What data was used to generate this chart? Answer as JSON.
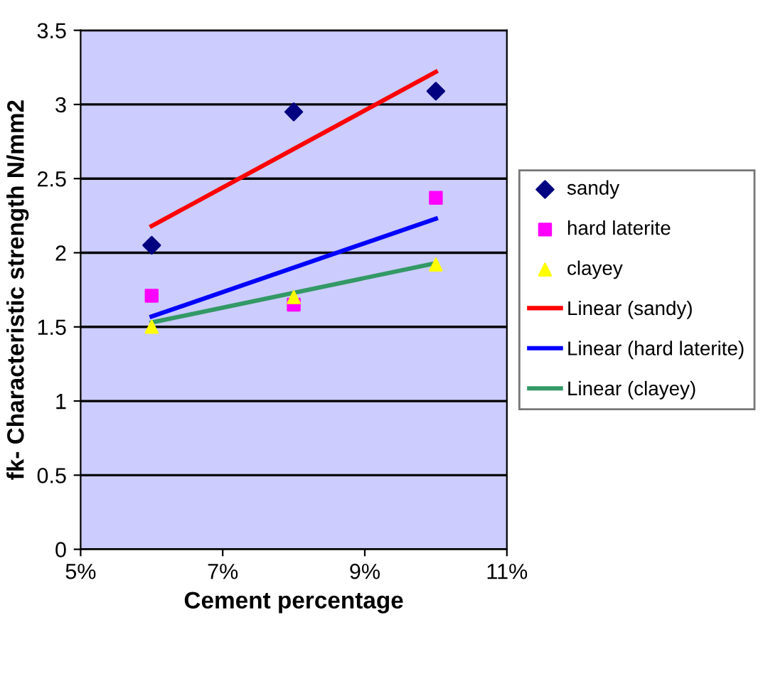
{
  "chart_data": {
    "type": "scatter",
    "xlabel": "Cement percentage",
    "ylabel": "fk- Characteristic strength N/mm2",
    "xlim": [
      5,
      11
    ],
    "xticks": [
      {
        "value": 5,
        "label": "5%"
      },
      {
        "value": 7,
        "label": "7%"
      },
      {
        "value": 9,
        "label": "9%"
      },
      {
        "value": 11,
        "label": "11%"
      }
    ],
    "ylim": [
      0,
      3.5
    ],
    "yticks": [
      0,
      0.5,
      1,
      1.5,
      2,
      2.5,
      3,
      3.5
    ],
    "grid": "y",
    "legend": "right",
    "series": [
      {
        "name": "sandy",
        "type": "scatter",
        "marker": "diamond",
        "color": "#000080",
        "x": [
          6,
          8,
          10
        ],
        "values": [
          2.05,
          2.95,
          3.09
        ]
      },
      {
        "name": "hard laterite",
        "type": "scatter",
        "marker": "square",
        "color": "#ff00ff",
        "x": [
          6,
          8,
          10
        ],
        "values": [
          1.71,
          1.65,
          2.37
        ]
      },
      {
        "name": "clayey",
        "type": "scatter",
        "marker": "triangle",
        "color": "#ffff00",
        "x": [
          6,
          8,
          10
        ],
        "values": [
          1.5,
          1.7,
          1.92
        ]
      },
      {
        "name": "Linear (sandy)",
        "type": "line",
        "color": "#ff0000",
        "x": [
          6,
          10
        ],
        "values": [
          2.18,
          3.22
        ]
      },
      {
        "name": "Linear (hard laterite)",
        "type": "line",
        "color": "#0000ff",
        "x": [
          6,
          10
        ],
        "values": [
          1.57,
          2.23
        ]
      },
      {
        "name": "Linear (clayey)",
        "type": "line",
        "color": "#339966",
        "x": [
          6,
          10
        ],
        "values": [
          1.53,
          1.93
        ]
      }
    ]
  }
}
